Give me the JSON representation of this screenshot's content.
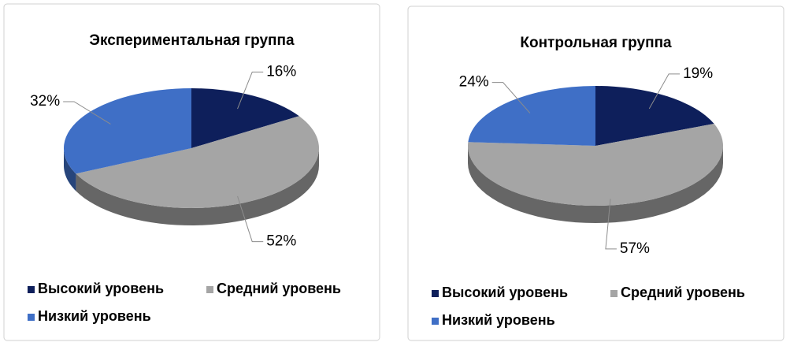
{
  "chart_data": [
    {
      "type": "pie",
      "title": "Экспериментальная группа",
      "categories": [
        "Высокий уровень",
        "Средний уровень",
        "Низкий уровень"
      ],
      "values": [
        16,
        52,
        32
      ],
      "value_labels": [
        "16%",
        "52%",
        "32%"
      ],
      "colors": [
        "#0e1f5b",
        "#a5a5a5",
        "#3f6fc6"
      ]
    },
    {
      "type": "pie",
      "title": "Контрольная группа",
      "categories": [
        "Высокий уровень",
        "Средний уровень",
        "Низкий уровень"
      ],
      "values": [
        19,
        57,
        24
      ],
      "value_labels": [
        "19%",
        "57%",
        "24%"
      ],
      "colors": [
        "#0e1f5b",
        "#a5a5a5",
        "#3f6fc6"
      ]
    }
  ]
}
